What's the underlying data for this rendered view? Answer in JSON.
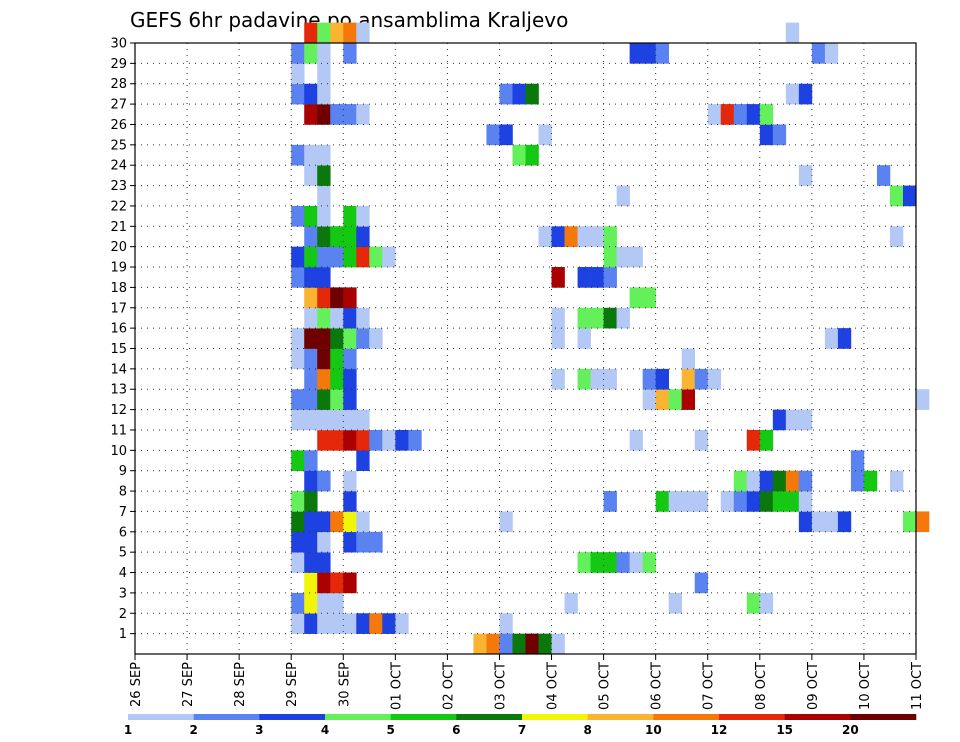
{
  "chart_data": {
    "type": "heatmap",
    "title": "GEFS 6hr padavine po ansamblima Kraljevo",
    "xlabel": "",
    "ylabel": "",
    "x_tick_labels": [
      "26 SEP",
      "27 SEP",
      "28 SEP",
      "29 SEP",
      "30 SEP",
      "01 OCT",
      "02 OCT",
      "03 OCT",
      "04 OCT",
      "05 OCT",
      "06 OCT",
      "07 OCT",
      "08 OCT",
      "09 OCT",
      "10 OCT",
      "11 OCT"
    ],
    "y_tick_labels": [
      "1",
      "2",
      "3",
      "4",
      "5",
      "6",
      "7",
      "8",
      "9",
      "10",
      "11",
      "12",
      "13",
      "14",
      "15",
      "16",
      "17",
      "18",
      "19",
      "20",
      "21",
      "22",
      "23",
      "24",
      "25",
      "26",
      "27",
      "28",
      "29",
      "30"
    ],
    "x_time_range": [
      "26 SEP",
      "11 OCT"
    ],
    "y_range": [
      0,
      30
    ],
    "time_step_hours": 6,
    "grid": true,
    "colorbar": {
      "orientation": "horizontal",
      "labels": [
        "1",
        "2",
        "3",
        "4",
        "5",
        "6",
        "7",
        "8",
        "10",
        "12",
        "15",
        "20"
      ],
      "colors": [
        "#b4c8f5",
        "#5a82f0",
        "#1e41e1",
        "#64f05a",
        "#14c814",
        "#0a780a",
        "#f0f50a",
        "#fab432",
        "#f5780a",
        "#e6280a",
        "#aa0000",
        "#6e0000"
      ]
    },
    "legend_placement": "bottom",
    "cells": [
      [
        1,
        "29 SEP 00",
        1
      ],
      [
        1,
        "29 SEP 06",
        3
      ],
      [
        1,
        "29 SEP 12",
        1
      ],
      [
        1,
        "29 SEP 18",
        1
      ],
      [
        1,
        "30 SEP 00",
        1
      ],
      [
        1,
        "30 SEP 06",
        3
      ],
      [
        1,
        "30 SEP 12",
        10
      ],
      [
        1,
        "30 SEP 18",
        3
      ],
      [
        1,
        "01 OCT 00",
        1
      ],
      [
        1,
        "03 OCT 00",
        1
      ],
      [
        0,
        "02 OCT 12",
        8
      ],
      [
        0,
        "02 OCT 18",
        10
      ],
      [
        0,
        "03 OCT 00",
        2
      ],
      [
        0,
        "03 OCT 06",
        6
      ],
      [
        0,
        "03 OCT 12",
        20
      ],
      [
        0,
        "03 OCT 18",
        6
      ],
      [
        0,
        "04 OCT 00",
        1
      ],
      [
        2,
        "29 SEP 00",
        2
      ],
      [
        2,
        "29 SEP 06",
        7
      ],
      [
        2,
        "29 SEP 12",
        1
      ],
      [
        2,
        "29 SEP 18",
        1
      ],
      [
        2,
        "04 OCT 06",
        1
      ],
      [
        2,
        "06 OCT 06",
        1
      ],
      [
        2,
        "07 OCT 18",
        4
      ],
      [
        2,
        "08 OCT 00",
        1
      ],
      [
        3,
        "29 SEP 06",
        7
      ],
      [
        3,
        "29 SEP 12",
        15
      ],
      [
        3,
        "29 SEP 18",
        12
      ],
      [
        3,
        "30 SEP 00",
        15
      ],
      [
        3,
        "06 OCT 18",
        2
      ],
      [
        4,
        "29 SEP 00",
        1
      ],
      [
        4,
        "29 SEP 06",
        3
      ],
      [
        4,
        "29 SEP 12",
        3
      ],
      [
        4,
        "04 OCT 12",
        4
      ],
      [
        4,
        "04 OCT 18",
        5
      ],
      [
        4,
        "05 OCT 00",
        5
      ],
      [
        4,
        "05 OCT 06",
        2
      ],
      [
        4,
        "05 OCT 12",
        1
      ],
      [
        4,
        "05 OCT 18",
        4
      ],
      [
        5,
        "29 SEP 00",
        3
      ],
      [
        5,
        "29 SEP 06",
        3
      ],
      [
        5,
        "29 SEP 12",
        1
      ],
      [
        5,
        "30 SEP 00",
        3
      ],
      [
        5,
        "30 SEP 06",
        2
      ],
      [
        5,
        "30 SEP 12",
        2
      ],
      [
        6,
        "29 SEP 00",
        6
      ],
      [
        6,
        "29 SEP 06",
        3
      ],
      [
        6,
        "29 SEP 12",
        3
      ],
      [
        6,
        "29 SEP 18",
        10
      ],
      [
        6,
        "30 SEP 00",
        7
      ],
      [
        6,
        "30 SEP 06",
        1
      ],
      [
        6,
        "03 OCT 00",
        1
      ],
      [
        6,
        "08 OCT 18",
        3
      ],
      [
        6,
        "09 OCT 00",
        1
      ],
      [
        6,
        "09 OCT 06",
        1
      ],
      [
        6,
        "09 OCT 12",
        3
      ],
      [
        6,
        "10 OCT 18",
        4
      ],
      [
        6,
        "11 OCT 00",
        10
      ],
      [
        7,
        "29 SEP 00",
        4
      ],
      [
        7,
        "29 SEP 06",
        6
      ],
      [
        7,
        "30 SEP 00",
        3
      ],
      [
        7,
        "05 OCT 00",
        2
      ],
      [
        7,
        "06 OCT 00",
        5
      ],
      [
        7,
        "06 OCT 06",
        1
      ],
      [
        7,
        "06 OCT 12",
        1
      ],
      [
        7,
        "06 OCT 18",
        1
      ],
      [
        7,
        "07 OCT 06",
        1
      ],
      [
        7,
        "07 OCT 12",
        2
      ],
      [
        7,
        "07 OCT 18",
        3
      ],
      [
        7,
        "08 OCT 00",
        6
      ],
      [
        7,
        "08 OCT 06",
        5
      ],
      [
        7,
        "08 OCT 12",
        5
      ],
      [
        7,
        "08 OCT 18",
        1
      ],
      [
        8,
        "29 SEP 06",
        3
      ],
      [
        8,
        "29 SEP 12",
        2
      ],
      [
        8,
        "30 SEP 00",
        1
      ],
      [
        8,
        "07 OCT 12",
        4
      ],
      [
        8,
        "07 OCT 18",
        1
      ],
      [
        8,
        "08 OCT 00",
        3
      ],
      [
        8,
        "08 OCT 06",
        6
      ],
      [
        8,
        "08 OCT 12",
        10
      ],
      [
        8,
        "08 OCT 18",
        2
      ],
      [
        8,
        "09 OCT 18",
        2
      ],
      [
        8,
        "10 OCT 00",
        5
      ],
      [
        8,
        "10 OCT 12",
        1
      ],
      [
        9,
        "29 SEP 00",
        5
      ],
      [
        9,
        "29 SEP 06",
        2
      ],
      [
        9,
        "30 SEP 06",
        3
      ],
      [
        9,
        "09 OCT 18",
        2
      ],
      [
        10,
        "29 SEP 12",
        12
      ],
      [
        10,
        "29 SEP 18",
        12
      ],
      [
        10,
        "30 SEP 00",
        15
      ],
      [
        10,
        "30 SEP 06",
        12
      ],
      [
        10,
        "30 SEP 12",
        2
      ],
      [
        10,
        "30 SEP 18",
        1
      ],
      [
        10,
        "01 OCT 00",
        3
      ],
      [
        10,
        "01 OCT 06",
        2
      ],
      [
        10,
        "05 OCT 12",
        1
      ],
      [
        10,
        "06 OCT 18",
        1
      ],
      [
        10,
        "07 OCT 18",
        12
      ],
      [
        10,
        "08 OCT 00",
        5
      ],
      [
        11,
        "29 SEP 00",
        1
      ],
      [
        11,
        "29 SEP 06",
        1
      ],
      [
        11,
        "29 SEP 12",
        1
      ],
      [
        11,
        "29 SEP 18",
        1
      ],
      [
        11,
        "30 SEP 00",
        1
      ],
      [
        11,
        "30 SEP 06",
        1
      ],
      [
        11,
        "08 OCT 06",
        3
      ],
      [
        11,
        "08 OCT 12",
        1
      ],
      [
        11,
        "08 OCT 18",
        1
      ],
      [
        12,
        "29 SEP 00",
        2
      ],
      [
        12,
        "29 SEP 06",
        2
      ],
      [
        12,
        "29 SEP 12",
        6
      ],
      [
        12,
        "29 SEP 18",
        4
      ],
      [
        12,
        "30 SEP 00",
        3
      ],
      [
        12,
        "05 OCT 18",
        1
      ],
      [
        12,
        "06 OCT 00",
        8
      ],
      [
        12,
        "06 OCT 06",
        4
      ],
      [
        12,
        "06 OCT 12",
        15
      ],
      [
        12,
        "11 OCT 00",
        1
      ],
      [
        13,
        "29 SEP 06",
        2
      ],
      [
        13,
        "29 SEP 12",
        10
      ],
      [
        13,
        "29 SEP 18",
        5
      ],
      [
        13,
        "30 SEP 00",
        3
      ],
      [
        13,
        "04 OCT 00",
        1
      ],
      [
        13,
        "04 OCT 12",
        4
      ],
      [
        13,
        "04 OCT 18",
        1
      ],
      [
        13,
        "05 OCT 00",
        1
      ],
      [
        13,
        "05 OCT 18",
        2
      ],
      [
        13,
        "06 OCT 00",
        3
      ],
      [
        13,
        "06 OCT 12",
        8
      ],
      [
        13,
        "06 OCT 18",
        2
      ],
      [
        13,
        "07 OCT 00",
        1
      ],
      [
        14,
        "29 SEP 00",
        1
      ],
      [
        14,
        "29 SEP 06",
        2
      ],
      [
        14,
        "29 SEP 12",
        20
      ],
      [
        14,
        "29 SEP 18",
        5
      ],
      [
        14,
        "30 SEP 00",
        2
      ],
      [
        14,
        "06 OCT 12",
        1
      ],
      [
        15,
        "29 SEP 00",
        1
      ],
      [
        15,
        "29 SEP 06",
        20
      ],
      [
        15,
        "29 SEP 12",
        20
      ],
      [
        15,
        "29 SEP 18",
        6
      ],
      [
        15,
        "30 SEP 00",
        4
      ],
      [
        15,
        "30 SEP 06",
        2
      ],
      [
        15,
        "30 SEP 12",
        1
      ],
      [
        15,
        "04 OCT 00",
        1
      ],
      [
        15,
        "04 OCT 12",
        1
      ],
      [
        15,
        "09 OCT 06",
        1
      ],
      [
        15,
        "09 OCT 12",
        3
      ],
      [
        16,
        "29 SEP 06",
        1
      ],
      [
        16,
        "29 SEP 12",
        4
      ],
      [
        16,
        "29 SEP 18",
        1
      ],
      [
        16,
        "30 SEP 00",
        3
      ],
      [
        16,
        "30 SEP 06",
        1
      ],
      [
        16,
        "04 OCT 00",
        1
      ],
      [
        16,
        "04 OCT 12",
        4
      ],
      [
        16,
        "04 OCT 18",
        4
      ],
      [
        16,
        "05 OCT 00",
        6
      ],
      [
        16,
        "05 OCT 06",
        1
      ],
      [
        17,
        "29 SEP 06",
        8
      ],
      [
        17,
        "29 SEP 12",
        12
      ],
      [
        17,
        "29 SEP 18",
        20
      ],
      [
        17,
        "30 SEP 00",
        15
      ],
      [
        17,
        "05 OCT 12",
        4
      ],
      [
        17,
        "05 OCT 18",
        4
      ],
      [
        18,
        "29 SEP 00",
        2
      ],
      [
        18,
        "29 SEP 06",
        3
      ],
      [
        18,
        "29 SEP 12",
        3
      ],
      [
        18,
        "04 OCT 00",
        15
      ],
      [
        18,
        "04 OCT 12",
        3
      ],
      [
        18,
        "04 OCT 18",
        3
      ],
      [
        18,
        "05 OCT 00",
        2
      ],
      [
        19,
        "29 SEP 00",
        3
      ],
      [
        19,
        "29 SEP 06",
        5
      ],
      [
        19,
        "29 SEP 12",
        2
      ],
      [
        19,
        "29 SEP 18",
        2
      ],
      [
        19,
        "30 SEP 00",
        5
      ],
      [
        19,
        "30 SEP 06",
        12
      ],
      [
        19,
        "30 SEP 12",
        4
      ],
      [
        19,
        "30 SEP 18",
        1
      ],
      [
        19,
        "05 OCT 00",
        4
      ],
      [
        19,
        "05 OCT 06",
        1
      ],
      [
        19,
        "05 OCT 12",
        1
      ],
      [
        20,
        "29 SEP 06",
        2
      ],
      [
        20,
        "29 SEP 12",
        6
      ],
      [
        20,
        "29 SEP 18",
        5
      ],
      [
        20,
        "30 SEP 00",
        5
      ],
      [
        20,
        "30 SEP 06",
        3
      ],
      [
        20,
        "03 OCT 18",
        1
      ],
      [
        20,
        "04 OCT 00",
        3
      ],
      [
        20,
        "04 OCT 06",
        10
      ],
      [
        20,
        "04 OCT 12",
        1
      ],
      [
        20,
        "04 OCT 18",
        1
      ],
      [
        20,
        "05 OCT 00",
        4
      ],
      [
        20,
        "10 OCT 12",
        1
      ],
      [
        21,
        "29 SEP 00",
        2
      ],
      [
        21,
        "29 SEP 06",
        5
      ],
      [
        21,
        "29 SEP 12",
        1
      ],
      [
        21,
        "30 SEP 00",
        5
      ],
      [
        21,
        "30 SEP 06",
        1
      ],
      [
        22,
        "29 SEP 12",
        1
      ],
      [
        22,
        "05 OCT 06",
        1
      ],
      [
        22,
        "10 OCT 12",
        4
      ],
      [
        22,
        "10 OCT 18",
        3
      ],
      [
        23,
        "29 SEP 06",
        1
      ],
      [
        23,
        "29 SEP 12",
        6
      ],
      [
        23,
        "08 OCT 18",
        1
      ],
      [
        23,
        "10 OCT 06",
        2
      ],
      [
        24,
        "29 SEP 00",
        2
      ],
      [
        24,
        "29 SEP 06",
        1
      ],
      [
        24,
        "29 SEP 12",
        1
      ],
      [
        24,
        "03 OCT 06",
        4
      ],
      [
        24,
        "03 OCT 12",
        5
      ],
      [
        25,
        "02 OCT 18",
        2
      ],
      [
        25,
        "03 OCT 00",
        3
      ],
      [
        25,
        "03 OCT 18",
        1
      ],
      [
        25,
        "08 OCT 00",
        3
      ],
      [
        25,
        "08 OCT 06",
        2
      ],
      [
        26,
        "29 SEP 06",
        15
      ],
      [
        26,
        "29 SEP 12",
        20
      ],
      [
        26,
        "29 SEP 18",
        2
      ],
      [
        26,
        "30 SEP 00",
        2
      ],
      [
        26,
        "30 SEP 06",
        1
      ],
      [
        26,
        "07 OCT 00",
        1
      ],
      [
        26,
        "07 OCT 06",
        12
      ],
      [
        26,
        "07 OCT 12",
        2
      ],
      [
        26,
        "07 OCT 18",
        3
      ],
      [
        26,
        "08 OCT 00",
        4
      ],
      [
        27,
        "29 SEP 00",
        2
      ],
      [
        27,
        "29 SEP 06",
        3
      ],
      [
        27,
        "29 SEP 12",
        1
      ],
      [
        27,
        "03 OCT 00",
        2
      ],
      [
        27,
        "03 OCT 06",
        3
      ],
      [
        27,
        "03 OCT 12",
        6
      ],
      [
        27,
        "08 OCT 12",
        1
      ],
      [
        27,
        "08 OCT 18",
        3
      ],
      [
        28,
        "29 SEP 00",
        1
      ],
      [
        28,
        "29 SEP 12",
        1
      ],
      [
        29,
        "29 SEP 00",
        2
      ],
      [
        29,
        "29 SEP 06",
        4
      ],
      [
        29,
        "29 SEP 12",
        1
      ],
      [
        29,
        "30 SEP 00",
        2
      ],
      [
        29,
        "05 OCT 12",
        3
      ],
      [
        29,
        "05 OCT 18",
        3
      ],
      [
        29,
        "06 OCT 00",
        2
      ],
      [
        29,
        "09 OCT 00",
        2
      ],
      [
        29,
        "09 OCT 06",
        1
      ],
      [
        30,
        "29 SEP 06",
        12
      ],
      [
        30,
        "29 SEP 12",
        4
      ],
      [
        30,
        "29 SEP 18",
        8
      ],
      [
        30,
        "30 SEP 00",
        10
      ],
      [
        30,
        "30 SEP 06",
        1
      ],
      [
        30,
        "08 OCT 12",
        1
      ]
    ]
  }
}
